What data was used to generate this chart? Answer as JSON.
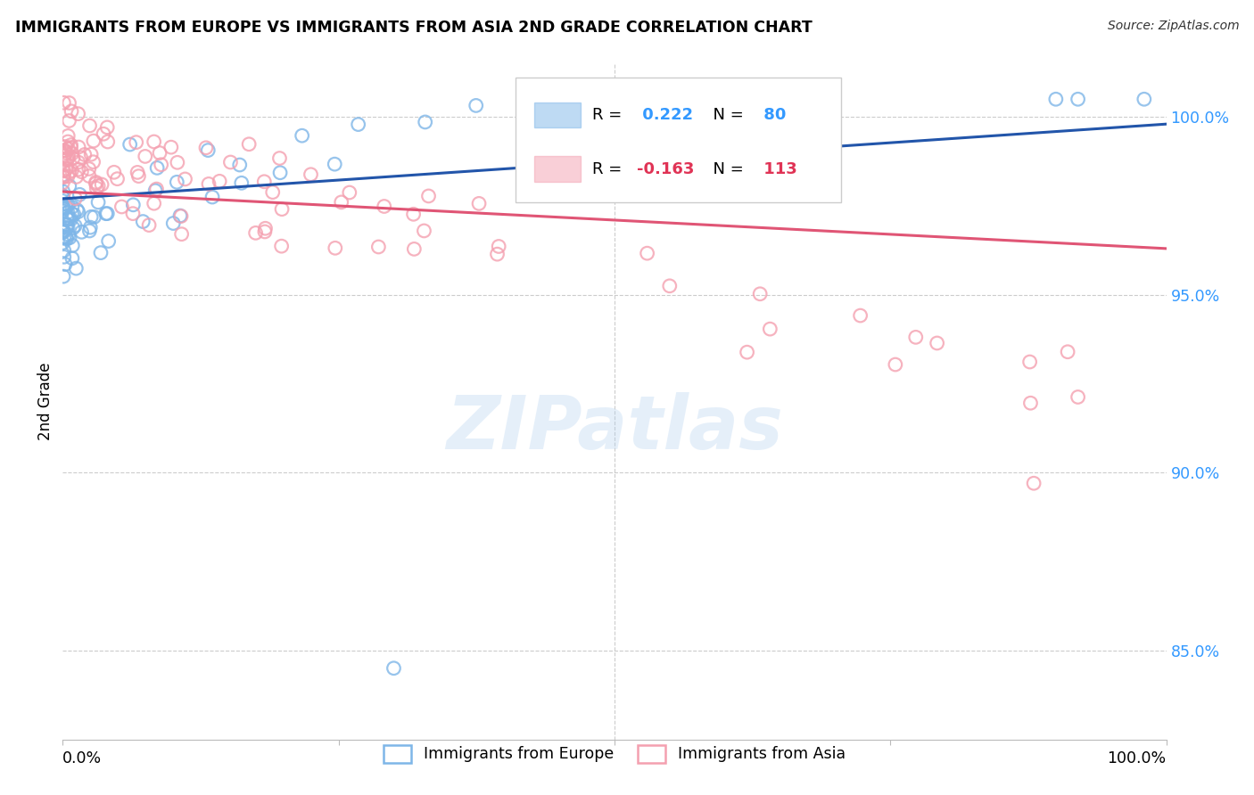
{
  "title": "IMMIGRANTS FROM EUROPE VS IMMIGRANTS FROM ASIA 2ND GRADE CORRELATION CHART",
  "source": "Source: ZipAtlas.com",
  "ylabel": "2nd Grade",
  "legend_europe": "Immigrants from Europe",
  "legend_asia": "Immigrants from Asia",
  "europe_R": 0.222,
  "europe_N": 80,
  "asia_R": -0.163,
  "asia_N": 113,
  "europe_color": "#7EB6E8",
  "asia_color": "#F4A0B0",
  "europe_line_color": "#2255AA",
  "asia_line_color": "#E05575",
  "watermark_text": "ZIPatlas",
  "ytick_labels": [
    "100.0%",
    "95.0%",
    "90.0%",
    "85.0%"
  ],
  "ytick_values": [
    1.0,
    0.95,
    0.9,
    0.85
  ],
  "xlim": [
    0.0,
    1.0
  ],
  "ylim": [
    0.825,
    1.015
  ],
  "europe_trend_x": [
    0.0,
    1.0
  ],
  "europe_trend_y": [
    0.977,
    0.998
  ],
  "asia_trend_x": [
    0.0,
    1.0
  ],
  "asia_trend_y": [
    0.979,
    0.963
  ]
}
